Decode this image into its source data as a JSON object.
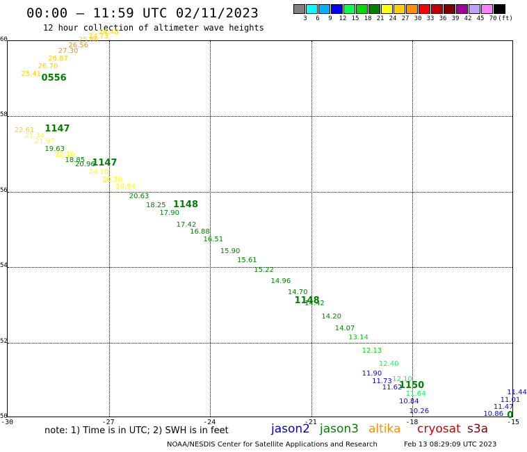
{
  "header": {
    "title": "00:00 – 11:59 UTC 02/11/2023",
    "subtitle": "12 hour collection of altimeter wave heights"
  },
  "colorbar": {
    "colors": [
      "#808080",
      "#00ffff",
      "#00b0ff",
      "#0000ff",
      "#00ff50",
      "#00dc00",
      "#008000",
      "#ffff00",
      "#ffd000",
      "#ff9000",
      "#ff0000",
      "#c00000",
      "#800000",
      "#a000a0",
      "#c0a0ff",
      "#ff80ff",
      "#000000"
    ],
    "labels": [
      "3",
      "6",
      "9",
      "12",
      "15",
      "18",
      "21",
      "24",
      "27",
      "30",
      "33",
      "36",
      "39",
      "42",
      "45",
      "70",
      "(ft)"
    ]
  },
  "axes": {
    "y_ticks": [
      "60",
      "58",
      "56",
      "54",
      "52",
      "50"
    ],
    "x_ticks": [
      "-30",
      "-27",
      "-24",
      "-21",
      "-18",
      "-15"
    ]
  },
  "chart_data": {
    "type": "scatter",
    "xlim": [
      -30,
      -15
    ],
    "ylim": [
      50,
      60
    ],
    "grid": true,
    "y_ticks": [
      60,
      58,
      56,
      54,
      52,
      50
    ],
    "x_ticks": [
      -30,
      -27,
      -24,
      -21,
      -18,
      -15
    ],
    "series": [
      {
        "name": "altika",
        "color": "#ff9000",
        "labels": [
          {
            "lon": -29.6,
            "lat": 59.1,
            "text": "25.41",
            "color": "#ffd000"
          },
          {
            "lon": -29.1,
            "lat": 59.3,
            "text": "26.70",
            "color": "#ffd000"
          },
          {
            "lon": -28.8,
            "lat": 59.5,
            "text": "26.87",
            "color": "#ffd000"
          },
          {
            "lon": -28.5,
            "lat": 59.7,
            "text": "27.30",
            "color": "#ff9000"
          },
          {
            "lon": -28.2,
            "lat": 59.85,
            "text": "26.56",
            "color": "#ff9000"
          },
          {
            "lon": -27.9,
            "lat": 60.0,
            "text": "25.86",
            "color": "#ffd000"
          },
          {
            "lon": -27.6,
            "lat": 60.1,
            "text": "24.73",
            "color": "#ffd000"
          },
          {
            "lon": -27.3,
            "lat": 60.2,
            "text": "24.48",
            "color": "#ffd000"
          }
        ]
      },
      {
        "name": "jason3",
        "color": "#008000",
        "labels": [
          {
            "lon": -29.8,
            "lat": 57.6,
            "text": "22.61",
            "color": "#ffd000"
          },
          {
            "lon": -29.5,
            "lat": 57.45,
            "text": "21.34",
            "color": "#ffff00"
          },
          {
            "lon": -29.2,
            "lat": 57.3,
            "text": "21.97",
            "color": "#ffff00"
          },
          {
            "lon": -28.9,
            "lat": 57.1,
            "text": "19.63",
            "color": "#008000"
          },
          {
            "lon": -28.6,
            "lat": 56.95,
            "text": "22.10",
            "color": "#ffff00"
          },
          {
            "lon": -28.3,
            "lat": 56.8,
            "text": "18.85",
            "color": "#008000"
          },
          {
            "lon": -28.0,
            "lat": 56.7,
            "text": "20.96",
            "color": "#008000"
          },
          {
            "lon": -27.6,
            "lat": 56.5,
            "text": "24.10",
            "color": "#ffff00"
          },
          {
            "lon": -27.2,
            "lat": 56.3,
            "text": "20.30",
            "color": "#ffff00"
          },
          {
            "lon": -26.8,
            "lat": 56.1,
            "text": "20.94",
            "color": "#ffff00"
          },
          {
            "lon": -26.4,
            "lat": 55.85,
            "text": "20.63",
            "color": "#008000"
          },
          {
            "lon": -25.9,
            "lat": 55.6,
            "text": "18.25",
            "color": "#008000"
          },
          {
            "lon": -25.5,
            "lat": 55.4,
            "text": "17.90",
            "color": "#008000"
          },
          {
            "lon": -25.0,
            "lat": 55.1,
            "text": "17.42",
            "color": "#008000"
          },
          {
            "lon": -24.6,
            "lat": 54.9,
            "text": "16.88",
            "color": "#008000"
          },
          {
            "lon": -24.2,
            "lat": 54.7,
            "text": "16.51",
            "color": "#008000"
          },
          {
            "lon": -23.7,
            "lat": 54.4,
            "text": "15.90",
            "color": "#008000"
          },
          {
            "lon": -23.2,
            "lat": 54.15,
            "text": "15.61",
            "color": "#008000"
          },
          {
            "lon": -22.7,
            "lat": 53.9,
            "text": "15.22",
            "color": "#008000"
          },
          {
            "lon": -22.2,
            "lat": 53.6,
            "text": "14.96",
            "color": "#008000"
          },
          {
            "lon": -21.7,
            "lat": 53.3,
            "text": "14.70",
            "color": "#008000"
          },
          {
            "lon": -21.2,
            "lat": 53.0,
            "text": "14.42",
            "color": "#008000"
          },
          {
            "lon": -20.7,
            "lat": 52.65,
            "text": "14.20",
            "color": "#008000"
          },
          {
            "lon": -20.3,
            "lat": 52.35,
            "text": "14.07",
            "color": "#008000"
          },
          {
            "lon": -19.9,
            "lat": 52.1,
            "text": "13.14",
            "color": "#00dc00"
          },
          {
            "lon": -19.5,
            "lat": 51.75,
            "text": "12.13",
            "color": "#00dc00"
          },
          {
            "lon": -19.0,
            "lat": 51.4,
            "text": "12.40",
            "color": "#00ff50"
          },
          {
            "lon": -18.6,
            "lat": 51.0,
            "text": "12.10",
            "color": "#00ff50"
          },
          {
            "lon": -18.2,
            "lat": 50.6,
            "text": "11.64",
            "color": "#00ff50"
          }
        ]
      },
      {
        "name": "jason2",
        "color": "#0000ff",
        "labels": [
          {
            "lon": -19.5,
            "lat": 51.15,
            "text": "11.90",
            "color": "#0000ff"
          },
          {
            "lon": -19.2,
            "lat": 50.95,
            "text": "11.73",
            "color": "#0000ff"
          },
          {
            "lon": -18.9,
            "lat": 50.78,
            "text": "11.62",
            "color": "#0000ff"
          },
          {
            "lon": -18.4,
            "lat": 50.4,
            "text": "10.84",
            "color": "#0000ff"
          },
          {
            "lon": -18.1,
            "lat": 50.15,
            "text": "10.26",
            "color": "#0000ff"
          },
          {
            "lon": -15.9,
            "lat": 50.08,
            "text": "10.86",
            "color": "#0000ff"
          },
          {
            "lon": -15.6,
            "lat": 50.25,
            "text": "11.47",
            "color": "#0000ff"
          },
          {
            "lon": -15.4,
            "lat": 50.45,
            "text": "11.01",
            "color": "#0000ff"
          },
          {
            "lon": -15.2,
            "lat": 50.65,
            "text": "11.44",
            "color": "#0000ff"
          }
        ]
      }
    ],
    "time_labels": [
      {
        "lon": -29.0,
        "lat": 59.0,
        "text": "0556",
        "color": "#008000"
      },
      {
        "lon": -28.9,
        "lat": 57.65,
        "text": "1147",
        "color": "#008000"
      },
      {
        "lon": -27.5,
        "lat": 56.75,
        "text": "1147",
        "color": "#008000"
      },
      {
        "lon": -25.1,
        "lat": 55.65,
        "text": "1148",
        "color": "#008000"
      },
      {
        "lon": -21.5,
        "lat": 53.1,
        "text": "1148",
        "color": "#008000"
      },
      {
        "lon": -18.4,
        "lat": 50.85,
        "text": "1150",
        "color": "#008000"
      },
      {
        "lon": -15.2,
        "lat": 50.05,
        "text": "0",
        "color": "#008000"
      }
    ]
  },
  "legend": {
    "note": "note: 1) Time is in UTC; 2) SWH is in feet",
    "items": [
      {
        "label": "jason2",
        "color": "#0000cc"
      },
      {
        "label": "jason3",
        "color": "#008000"
      },
      {
        "label": "altika",
        "color": "#ff9000"
      },
      {
        "label": "cryosat",
        "color": "#cc0000"
      },
      {
        "label": "s3a",
        "color": "#800000"
      }
    ]
  },
  "footer": {
    "credit": "NOAA/NESDIS Center for Satellite Applications and Research",
    "timestamp": "Feb 13 08:29:09 UTC 2023"
  }
}
